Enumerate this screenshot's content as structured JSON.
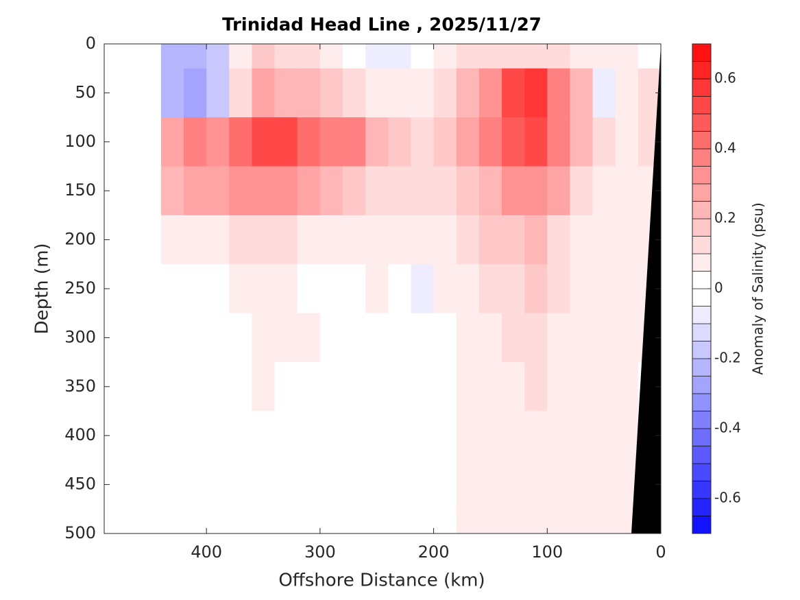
{
  "chart_data": {
    "type": "contour",
    "title": "Trinidad Head Line , 2025/11/27",
    "xlabel": "Offshore Distance (km)",
    "ylabel": "Depth (m)",
    "colorbar_label": "Anomaly of Salinity (psu)",
    "xlim": [
      490,
      0
    ],
    "xticks": [
      400,
      300,
      200,
      100,
      0
    ],
    "ylim": [
      0,
      500
    ],
    "yticks": [
      0,
      50,
      100,
      150,
      200,
      250,
      300,
      350,
      400,
      450,
      500
    ],
    "clim": [
      -0.7,
      0.7
    ],
    "cticks": [
      -0.6,
      -0.4,
      -0.2,
      0,
      0.2,
      0.4,
      0.6
    ],
    "level_step": 0.05,
    "x": [
      430,
      410,
      390,
      370,
      350,
      330,
      310,
      290,
      270,
      250,
      230,
      210,
      190,
      170,
      150,
      130,
      110,
      90,
      70,
      50,
      30,
      10
    ],
    "depth": [
      0,
      50,
      100,
      150,
      200,
      250,
      300,
      350,
      400,
      450,
      500
    ],
    "values": [
      [
        -0.2,
        -0.2,
        -0.15,
        0.05,
        0.15,
        0.1,
        0.1,
        0.05,
        0,
        -0.05,
        -0.05,
        0,
        0.05,
        0.1,
        0.1,
        0.1,
        0.1,
        0.1,
        0.05,
        0.05,
        0.05,
        0
      ],
      [
        -0.2,
        -0.25,
        -0.15,
        0.1,
        0.25,
        0.2,
        0.2,
        0.15,
        0.1,
        0.05,
        0.05,
        0.05,
        0.1,
        0.2,
        0.3,
        0.5,
        0.55,
        0.35,
        0.2,
        -0.05,
        0.05,
        0.1
      ],
      [
        0.25,
        0.35,
        0.3,
        0.4,
        0.5,
        0.5,
        0.4,
        0.35,
        0.35,
        0.2,
        0.15,
        0.1,
        0.15,
        0.25,
        0.35,
        0.45,
        0.5,
        0.35,
        0.2,
        0.1,
        0.05,
        0.1
      ],
      [
        0.2,
        0.25,
        0.25,
        0.3,
        0.3,
        0.3,
        0.25,
        0.2,
        0.15,
        0.1,
        0.1,
        0.1,
        0.1,
        0.15,
        0.2,
        0.3,
        0.3,
        0.25,
        0.1,
        0.05,
        0.05,
        0.05
      ],
      [
        0.05,
        0.05,
        0.05,
        0.1,
        0.1,
        0.1,
        0.05,
        0.05,
        0.05,
        0.05,
        0.05,
        0.05,
        0.05,
        0.1,
        0.15,
        0.15,
        0.2,
        0.1,
        0.05,
        0.05,
        0.05,
        0.05
      ],
      [
        0,
        0,
        0,
        0.05,
        0.05,
        0.05,
        0,
        0,
        0,
        0.05,
        0,
        -0.05,
        0.05,
        0.05,
        0.1,
        0.1,
        0.15,
        0.1,
        0.05,
        0.05,
        0.05,
        0.05
      ],
      [
        0,
        0,
        0,
        0,
        0.05,
        0.05,
        0.05,
        0,
        0,
        0,
        0,
        0,
        0,
        0.05,
        0.05,
        0.1,
        0.1,
        0.05,
        0.05,
        0.05,
        0.05,
        0.05
      ],
      [
        0,
        0,
        0,
        0,
        0.05,
        0,
        0,
        0,
        0,
        0,
        0,
        0,
        0,
        0.05,
        0.05,
        0.05,
        0.1,
        0.05,
        0.05,
        0.05,
        0.05,
        0
      ],
      [
        0,
        0,
        0,
        0,
        0,
        0,
        0,
        0,
        0,
        0,
        0,
        0,
        0,
        0.05,
        0.05,
        0.05,
        0.05,
        0.05,
        0.05,
        0.05,
        0.05,
        0
      ],
      [
        0,
        0,
        0,
        0,
        0,
        0,
        0,
        0,
        0,
        0,
        0,
        0,
        0,
        0.05,
        0.05,
        0.05,
        0.05,
        0.05,
        0.05,
        0.05,
        0.05,
        0
      ],
      [
        0,
        0,
        0,
        0,
        0,
        0,
        0,
        0,
        0,
        0,
        0,
        0,
        0,
        0.05,
        0.05,
        0.05,
        0.05,
        0.05,
        0.05,
        0.05,
        0.05,
        0
      ]
    ]
  }
}
